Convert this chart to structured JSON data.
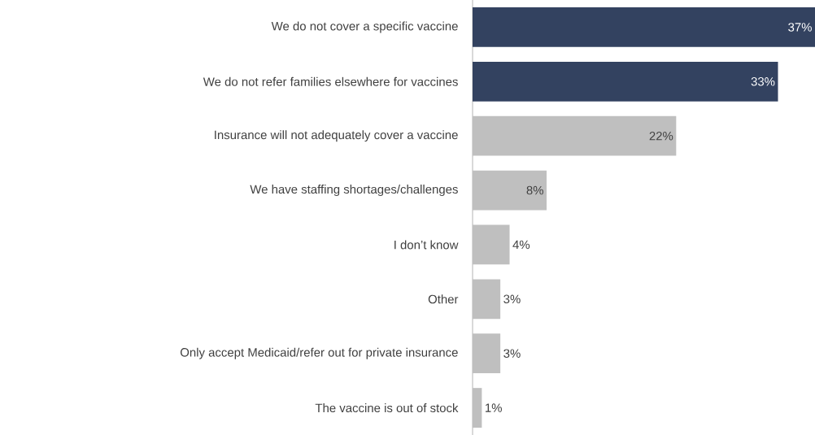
{
  "chart_data": {
    "type": "bar",
    "orientation": "horizontal",
    "categories": [
      "We do not cover a specific vaccine",
      "We do not refer families elsewhere for vaccines",
      "Insurance will not adequately cover a vaccine",
      "We have staffing shortages/challenges",
      "I don’t know",
      "Other",
      "Only accept Medicaid/refer out for private insurance",
      "The vaccine is out of stock"
    ],
    "values": [
      37,
      33,
      22,
      8,
      4,
      3,
      3,
      1
    ],
    "colors": [
      "#334260",
      "#334260",
      "#bfbfbf",
      "#bfbfbf",
      "#bfbfbf",
      "#bfbfbf",
      "#bfbfbf",
      "#bfbfbf"
    ],
    "value_labels": [
      "37%",
      "33%",
      "22%",
      "8%",
      "4%",
      "3%",
      "3%",
      "1%"
    ]
  }
}
